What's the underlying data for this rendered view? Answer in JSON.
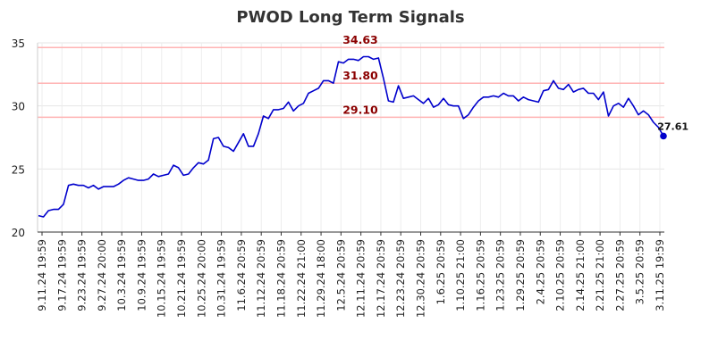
{
  "chart_data": {
    "type": "line",
    "title": "PWOD Long Term Signals",
    "xlabel": "",
    "ylabel": "",
    "ylim": [
      20,
      35
    ],
    "yticks": [
      20,
      25,
      30,
      35
    ],
    "grid": true,
    "legend": "none",
    "x_tick_labels": [
      "9.11.24 19:59",
      "9.17.24 19:59",
      "9.23.24 19:59",
      "9.27.24 20:00",
      "10.3.24 19:59",
      "10.9.24 19:59",
      "10.15.24 19:59",
      "10.21.24 19:59",
      "10.25.24 20:00",
      "10.31.24 19:59",
      "11.6.24 20:59",
      "11.12.24 20:59",
      "11.18.24 20:59",
      "11.22.24 21:00",
      "11.29.24 18:00",
      "12.5.24 20:59",
      "12.11.24 20:59",
      "12.17.24 20:59",
      "12.23.24 20:59",
      "12.30.24 20:59",
      "1.6.25 20:59",
      "1.10.25 21:00",
      "1.16.25 20:59",
      "1.23.25 20:59",
      "1.29.25 20:59",
      "2.4.25 20:59",
      "2.10.25 20:59",
      "2.14.25 21:00",
      "2.21.25 21:00",
      "2.27.25 20:59",
      "3.5.25 20:59",
      "3.11.25 19:59"
    ],
    "horizontal_lines": [
      {
        "value": 34.63,
        "label": "34.63"
      },
      {
        "value": 31.8,
        "label": "31.80"
      },
      {
        "value": 29.1,
        "label": "29.10"
      }
    ],
    "last_value_label": "27.61",
    "series": [
      {
        "values": [
          21.3,
          21.2,
          21.7,
          21.8,
          21.8,
          22.2,
          23.7,
          23.8,
          23.7,
          23.7,
          23.5,
          23.7,
          23.4,
          23.6,
          23.6,
          23.6,
          23.8,
          24.1,
          24.3,
          24.2,
          24.1,
          24.1,
          24.2,
          24.6,
          24.4,
          24.5,
          24.6,
          25.3,
          25.1,
          24.5,
          24.6,
          25.1,
          25.5,
          25.4,
          25.7,
          27.4,
          27.5,
          26.8,
          26.7,
          26.4,
          27.1,
          27.8,
          26.8,
          26.8,
          27.8,
          29.2,
          29.0,
          29.7,
          29.7,
          29.8,
          30.3,
          29.6,
          30.0,
          30.2,
          31.0,
          31.2,
          31.4,
          32.0,
          32.0,
          31.8,
          33.5,
          33.4,
          33.7,
          33.7,
          33.6,
          33.9,
          33.9,
          33.7,
          33.8,
          32.2,
          30.4,
          30.3,
          31.6,
          30.6,
          30.7,
          30.8,
          30.5,
          30.2,
          30.6,
          29.9,
          30.1,
          30.6,
          30.1,
          30.0,
          30.0,
          29.0,
          29.3,
          29.9,
          30.4,
          30.7,
          30.7,
          30.8,
          30.7,
          31.0,
          30.8,
          30.8,
          30.4,
          30.7,
          30.5,
          30.4,
          30.3,
          31.2,
          31.3,
          32.0,
          31.4,
          31.3,
          31.7,
          31.1,
          31.3,
          31.4,
          31.0,
          31.0,
          30.5,
          31.1,
          29.2,
          30.0,
          30.2,
          29.9,
          30.6,
          30.0,
          29.3,
          29.6,
          29.3,
          28.7,
          28.3,
          27.61
        ],
        "color": "#0000cc"
      }
    ],
    "colors": {
      "line": "#0000cc",
      "hline": "#ffb3b3",
      "hlabel": "#8b0000",
      "grid": "#e6e6e6"
    }
  }
}
